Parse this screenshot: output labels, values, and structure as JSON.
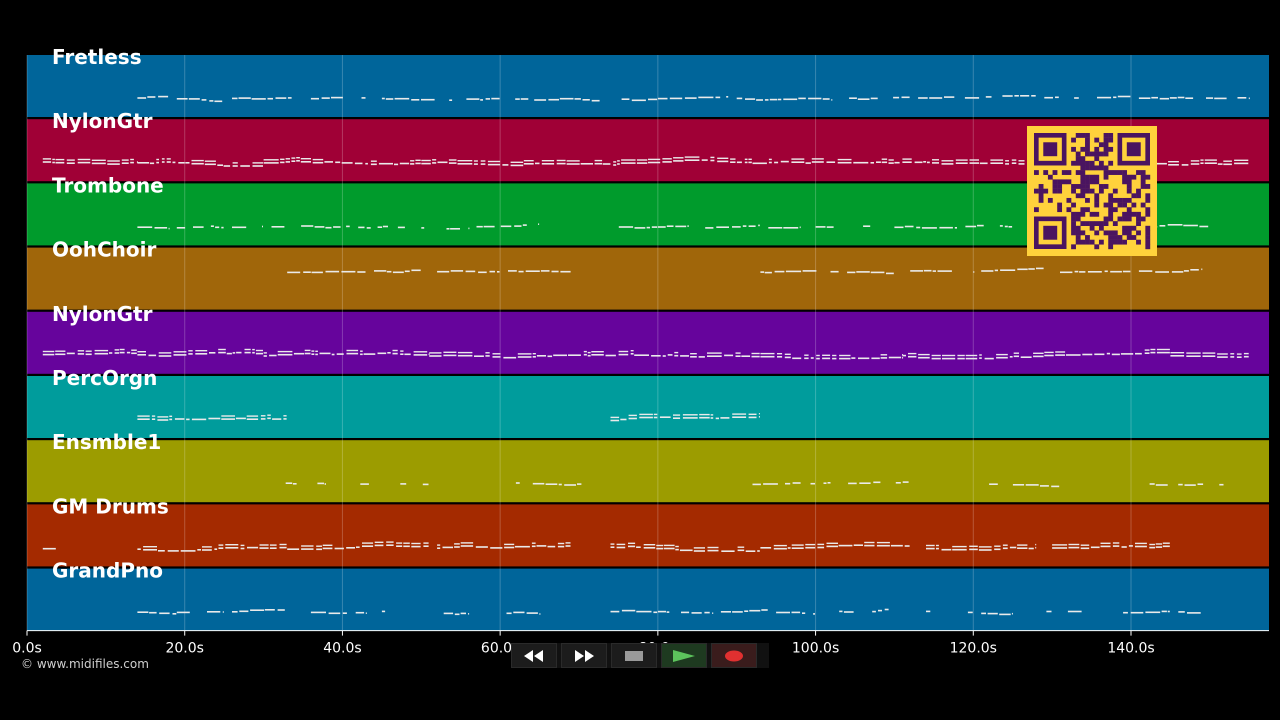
{
  "colors": {
    "background": "#000000",
    "note": "#eaeaea",
    "grid": "#ffffff",
    "qr_bg": "#ffd23c",
    "qr_fg": "#4a1460"
  },
  "tracks": [
    {
      "name": "Fretless",
      "color": "#00659a",
      "density": 0.55,
      "segments": [
        [
          14,
          18
        ],
        [
          19,
          25
        ],
        [
          26,
          35
        ],
        [
          36,
          43
        ],
        [
          45,
          60
        ],
        [
          61,
          73
        ],
        [
          74,
          80
        ],
        [
          80,
          89
        ],
        [
          90,
          102
        ],
        [
          103,
          112
        ],
        [
          113,
          128
        ],
        [
          129,
          140
        ],
        [
          141,
          155
        ]
      ]
    },
    {
      "name": "NylonGtr",
      "color": "#a00036",
      "density": 0.9,
      "segments": [
        [
          2,
          14
        ],
        [
          14,
          30
        ],
        [
          30,
          50
        ],
        [
          50,
          63
        ],
        [
          63,
          73
        ],
        [
          73,
          92
        ],
        [
          92,
          110
        ],
        [
          110,
          128
        ],
        [
          128,
          143
        ],
        [
          143,
          155
        ]
      ]
    },
    {
      "name": "Trombone",
      "color": "#009b2c",
      "density": 0.55,
      "segments": [
        [
          14,
          18
        ],
        [
          19,
          25
        ],
        [
          26,
          30
        ],
        [
          31,
          41
        ],
        [
          42,
          48
        ],
        [
          50,
          56
        ],
        [
          57,
          65
        ],
        [
          74,
          80
        ],
        [
          80,
          84
        ],
        [
          86,
          93
        ],
        [
          94,
          98
        ],
        [
          100,
          107
        ],
        [
          110,
          118
        ],
        [
          119,
          125
        ],
        [
          127,
          131
        ],
        [
          132,
          137
        ],
        [
          140,
          150
        ]
      ]
    },
    {
      "name": "OohChoir",
      "color": "#a0660a",
      "density": 0.7,
      "segments": [
        [
          33,
          43
        ],
        [
          44,
          50
        ],
        [
          52,
          60
        ],
        [
          61,
          69
        ],
        [
          93,
          103
        ],
        [
          104,
          110
        ],
        [
          112,
          120
        ],
        [
          121,
          129
        ],
        [
          131,
          140
        ],
        [
          141,
          149
        ]
      ]
    },
    {
      "name": "NylonGtr",
      "color": "#66049c",
      "density": 0.9,
      "segments": [
        [
          2,
          14
        ],
        [
          14,
          30
        ],
        [
          30,
          51
        ],
        [
          51,
          66
        ],
        [
          66,
          77
        ],
        [
          77,
          93
        ],
        [
          93,
          111
        ],
        [
          111,
          129
        ],
        [
          129,
          145
        ],
        [
          145,
          155
        ]
      ]
    },
    {
      "name": "PercOrgn",
      "color": "#009c9c",
      "density": 0.9,
      "segments": [
        [
          14,
          33
        ],
        [
          74,
          93
        ]
      ]
    },
    {
      "name": "Ensmble1",
      "color": "#9c9c00",
      "density": 0.45,
      "segments": [
        [
          32,
          38
        ],
        [
          39,
          51
        ],
        [
          62,
          71
        ],
        [
          92,
          100
        ],
        [
          101,
          112
        ],
        [
          122,
          131
        ],
        [
          141,
          153
        ]
      ]
    },
    {
      "name": "GM Drums",
      "color": "#a42a00",
      "density": 1.0,
      "segments": [
        [
          2,
          4
        ],
        [
          14,
          33
        ],
        [
          33,
          51
        ],
        [
          52,
          69
        ],
        [
          74,
          93
        ],
        [
          93,
          112
        ],
        [
          114,
          128
        ],
        [
          130,
          145
        ]
      ]
    },
    {
      "name": "GrandPno",
      "color": "#00659a",
      "density": 0.55,
      "segments": [
        [
          14,
          19
        ],
        [
          19,
          25
        ],
        [
          26,
          34
        ],
        [
          36,
          43
        ],
        [
          45,
          50
        ],
        [
          51,
          56
        ],
        [
          57,
          65
        ],
        [
          74,
          80
        ],
        [
          80,
          87
        ],
        [
          88,
          94
        ],
        [
          95,
          100
        ],
        [
          103,
          111
        ],
        [
          114,
          120
        ],
        [
          121,
          125
        ],
        [
          126,
          130
        ],
        [
          132,
          138
        ],
        [
          139,
          145
        ],
        [
          146,
          150
        ]
      ]
    }
  ],
  "axis": {
    "max_seconds": 157.5,
    "ticks": [
      {
        "seconds": 0,
        "label": "0.0s"
      },
      {
        "seconds": 20,
        "label": "20.0s"
      },
      {
        "seconds": 40,
        "label": "40.0s"
      },
      {
        "seconds": 60,
        "label": "60.0s"
      },
      {
        "seconds": 80,
        "label": "80.0s"
      },
      {
        "seconds": 100,
        "label": "100.0s"
      },
      {
        "seconds": 120,
        "label": "120.0s"
      },
      {
        "seconds": 140,
        "label": "140.0s"
      }
    ]
  },
  "copyright": "© www.midifiles.com",
  "transport": [
    {
      "name": "rewind-button",
      "icon": "rewind-icon",
      "color": "#ffffff"
    },
    {
      "name": "fast-forward-button",
      "icon": "fast-forward-icon",
      "color": "#ffffff"
    },
    {
      "name": "stop-button",
      "icon": "stop-icon",
      "color": "#9a9a9a"
    },
    {
      "name": "play-button",
      "icon": "play-icon",
      "color": "#4caf50"
    },
    {
      "name": "record-button",
      "icon": "record-icon",
      "color": "#e03030"
    }
  ],
  "qr_icon": "qr-code-icon"
}
